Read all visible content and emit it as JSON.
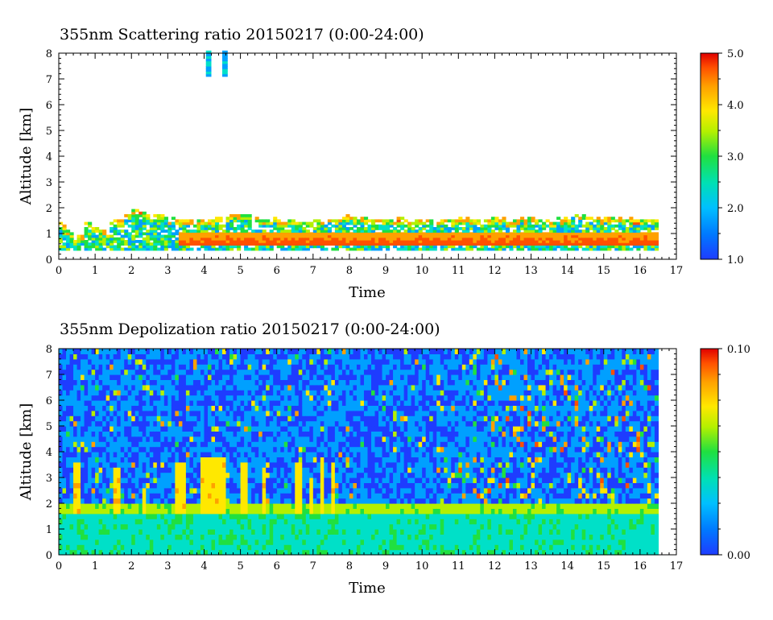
{
  "chart_data": [
    {
      "type": "heatmap",
      "title": "355nm Scattering ratio  20150217 (0:00-24:00)",
      "xlabel": "Time",
      "ylabel": "Altitude [km]",
      "xlim": [
        0,
        17
      ],
      "ylim": [
        0,
        8
      ],
      "x_ticks": [
        "0",
        "1",
        "2",
        "3",
        "4",
        "5",
        "6",
        "7",
        "8",
        "9",
        "10",
        "11",
        "12",
        "13",
        "14",
        "15",
        "16",
        "17"
      ],
      "y_ticks": [
        "0",
        "1",
        "2",
        "3",
        "4",
        "5",
        "6",
        "7",
        "8"
      ],
      "colorbar": {
        "range": [
          1.0,
          5.0
        ],
        "tick_labels": [
          "5.0",
          "4.0",
          "3.0",
          "2.0",
          "1.0"
        ],
        "tick_values": [
          5.0,
          4.0,
          3.0,
          2.0,
          1.0
        ],
        "colors": [
          "#1e3cff",
          "#00a0ff",
          "#00e0c8",
          "#20e040",
          "#b4f000",
          "#ffe800",
          "#ffa000",
          "#ff5000",
          "#e00000"
        ]
      },
      "data_extent_x": [
        0,
        16.4
      ],
      "layers": [
        {
          "name": "aerosol_top",
          "top_km": [
            1.35,
            1.05,
            0.85,
            1.45,
            1.2,
            1.05,
            0.95,
            1.55,
            1.5,
            1.85,
            1.95,
            1.8,
            1.7,
            1.65,
            1.7,
            1.55,
            1.5,
            1.5,
            1.45,
            1.5,
            1.55,
            1.55,
            1.6,
            1.7,
            1.75,
            1.7,
            1.6,
            1.5,
            1.5,
            1.55,
            1.45,
            1.45,
            1.4,
            1.45,
            1.5,
            1.45,
            1.55,
            1.5,
            1.6,
            1.7,
            1.65,
            1.6,
            1.55,
            1.5,
            1.45,
            1.5,
            1.55,
            1.5,
            1.45,
            1.5,
            1.5,
            1.4,
            1.45,
            1.5,
            1.55,
            1.55,
            1.5,
            1.45,
            1.5,
            1.6,
            1.55,
            1.45,
            1.5,
            1.55,
            1.6,
            1.5,
            1.45,
            1.4,
            1.55,
            1.6,
            1.75,
            1.7,
            1.65,
            1.6,
            1.55,
            1.6,
            1.55,
            1.5,
            1.55,
            1.5,
            1.5,
            1.5,
            1.45,
            1.5
          ],
          "step": 0.2
        },
        {
          "name": "dense_layer",
          "x_start": 3.3,
          "x_end": 16.4,
          "bottom_km": 0.45,
          "top_km": 1.0,
          "value": 4.6
        }
      ],
      "high_cloud": {
        "x": [
          4.05,
          4.5
        ],
        "alt_range": [
          7.1,
          8.0
        ],
        "value": 1.4
      }
    },
    {
      "type": "heatmap",
      "title": "355nm Depolization ratio  20150217 (0:00-24:00)",
      "xlabel": "Time",
      "ylabel": "Altitude [km]",
      "xlim": [
        0,
        17
      ],
      "ylim": [
        0,
        8
      ],
      "x_ticks": [
        "0",
        "1",
        "2",
        "3",
        "4",
        "5",
        "6",
        "7",
        "8",
        "9",
        "10",
        "11",
        "12",
        "13",
        "14",
        "15",
        "16",
        "17"
      ],
      "y_ticks": [
        "0",
        "1",
        "2",
        "3",
        "4",
        "5",
        "6",
        "7",
        "8"
      ],
      "colorbar": {
        "range": [
          0.0,
          0.1
        ],
        "tick_labels": [
          "0.10",
          "0.00"
        ],
        "tick_values": [
          0.1,
          0.0
        ],
        "colors": [
          "#1e3cff",
          "#00a0ff",
          "#00e0c8",
          "#20e040",
          "#b4f000",
          "#ffe800",
          "#ffa000",
          "#ff5000",
          "#e00000"
        ]
      },
      "data_extent_x": [
        0,
        16.4
      ],
      "boundary_layer_top_km": 1.8,
      "plumes": [
        {
          "x": 0.35,
          "w": 0.25,
          "top": 3.5
        },
        {
          "x": 1.45,
          "w": 0.2,
          "top": 3.4
        },
        {
          "x": 2.25,
          "w": 0.15,
          "top": 2.6
        },
        {
          "x": 3.2,
          "w": 0.25,
          "top": 3.6
        },
        {
          "x": 3.85,
          "w": 0.75,
          "top": 3.8
        },
        {
          "x": 4.9,
          "w": 0.2,
          "top": 3.5
        },
        {
          "x": 5.5,
          "w": 0.12,
          "top": 3.3
        },
        {
          "x": 6.45,
          "w": 0.15,
          "top": 3.6
        },
        {
          "x": 6.85,
          "w": 0.1,
          "top": 3.0
        },
        {
          "x": 7.1,
          "w": 0.1,
          "top": 3.5
        },
        {
          "x": 7.45,
          "w": 0.12,
          "top": 3.6
        }
      ]
    }
  ]
}
